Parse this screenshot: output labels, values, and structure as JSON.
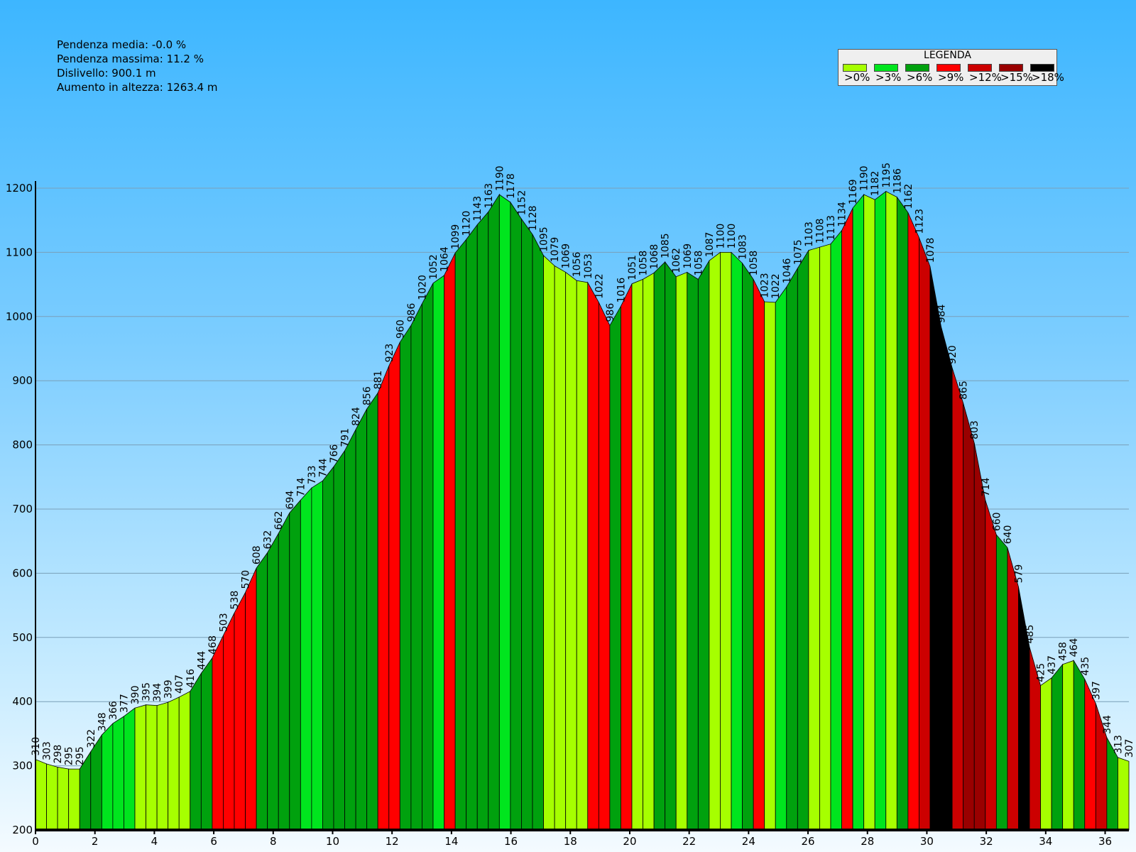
{
  "stats": [
    "Pendenza media: -0.0 %",
    "Pendenza massima: 11.2 %",
    "Dislivello: 900.1 m",
    "Aumento in altezza: 1263.4 m"
  ],
  "legend": {
    "title": "LEGENDA",
    "items": [
      {
        "label": ">0%",
        "color": "#a6ff00"
      },
      {
        "label": ">3%",
        "color": "#00e51e"
      },
      {
        "label": ">6%",
        "color": "#00a10e"
      },
      {
        "label": ">9%",
        "color": "#ff0000"
      },
      {
        "label": ">12%",
        "color": "#cc0000"
      },
      {
        "label": ">15%",
        "color": "#990000"
      },
      {
        "label": ">18%",
        "color": "#000000"
      }
    ]
  },
  "chart_data": {
    "type": "area",
    "xlim": [
      0,
      36.8
    ],
    "ylim": [
      200,
      1200
    ],
    "x_ticks": [
      0,
      2,
      4,
      6,
      8,
      10,
      12,
      14,
      16,
      18,
      20,
      22,
      24,
      26,
      28,
      30,
      32,
      34,
      36
    ],
    "y_ticks": [
      200,
      300,
      400,
      500,
      600,
      700,
      800,
      900,
      1000,
      1100,
      1200
    ],
    "grid": true,
    "point_labels": [
      "310",
      "303",
      "298",
      "295",
      "295",
      "322",
      "348",
      "366",
      "377",
      "390",
      "395",
      "394",
      "399",
      "407",
      "416",
      "444",
      "468",
      "503",
      "538",
      "570",
      "608",
      "632",
      "662",
      "694",
      "714",
      "733",
      "744",
      "766",
      "791",
      "824",
      "856",
      "881",
      "923",
      "960",
      "986",
      "1020",
      "1052",
      "1064",
      "1099",
      "1120",
      "1143",
      "1163",
      "1190",
      "1178",
      "1152",
      "1128",
      "1095",
      "1079",
      "1069",
      "1056",
      "1053",
      "1022",
      "986",
      "1016",
      "1051",
      "1058",
      "1068",
      "1085",
      "1062",
      "1069",
      "1058",
      "1087",
      "1100",
      "1100",
      "1083",
      "1058",
      "1023",
      "1022",
      "1046",
      "1075",
      "1103",
      "1108",
      "1113",
      "1134",
      "1169",
      "1190",
      "1182",
      "1195",
      "1186",
      "1162",
      "1123",
      "1078",
      "984",
      "920",
      "865",
      "803",
      "714",
      "660",
      "640",
      "579",
      "485",
      "425",
      "437",
      "458",
      "464",
      "435",
      "397",
      "344",
      "313",
      "307"
    ],
    "elevations": [
      310,
      303,
      298,
      295,
      295,
      322,
      348,
      366,
      377,
      390,
      395,
      394,
      399,
      407,
      416,
      444,
      468,
      503,
      538,
      570,
      608,
      632,
      662,
      694,
      714,
      733,
      744,
      766,
      791,
      824,
      856,
      881,
      923,
      960,
      986,
      1020,
      1052,
      1064,
      1099,
      1120,
      1143,
      1163,
      1190,
      1178,
      1152,
      1128,
      1095,
      1079,
      1069,
      1056,
      1053,
      1022,
      986,
      1016,
      1051,
      1058,
      1068,
      1085,
      1062,
      1069,
      1058,
      1087,
      1100,
      1100,
      1083,
      1058,
      1023,
      1022,
      1046,
      1075,
      1103,
      1108,
      1113,
      1134,
      1169,
      1190,
      1182,
      1195,
      1186,
      1162,
      1123,
      1078,
      984,
      920,
      865,
      803,
      714,
      660,
      640,
      579,
      485,
      425,
      437,
      458,
      464,
      435,
      397,
      344,
      313,
      307
    ],
    "segment_colors": [
      "#a6ff00",
      "#a6ff00",
      "#a6ff00",
      "#a6ff00",
      "#00a10e",
      "#00a10e",
      "#00e51e",
      "#00e51e",
      "#00e51e",
      "#a6ff00",
      "#a6ff00",
      "#a6ff00",
      "#a6ff00",
      "#a6ff00",
      "#00a10e",
      "#00a10e",
      "#ff0000",
      "#ff0000",
      "#ff0000",
      "#ff0000",
      "#00a10e",
      "#00a10e",
      "#00a10e",
      "#00a10e",
      "#00e51e",
      "#00e51e",
      "#00a10e",
      "#00a10e",
      "#00a10e",
      "#00a10e",
      "#00a10e",
      "#ff0000",
      "#ff0000",
      "#00a10e",
      "#00a10e",
      "#00a10e",
      "#00e51e",
      "#ff0000",
      "#00a10e",
      "#00a10e",
      "#00a10e",
      "#00a10e",
      "#00e51e",
      "#00a10e",
      "#00a10e",
      "#00a10e",
      "#a6ff00",
      "#a6ff00",
      "#a6ff00",
      "#a6ff00",
      "#ff0000",
      "#ff0000",
      "#00a10e",
      "#ff0000",
      "#a6ff00",
      "#a6ff00",
      "#00a10e",
      "#00a10e",
      "#a6ff00",
      "#00a10e",
      "#00a10e",
      "#a6ff00",
      "#a6ff00",
      "#00e51e",
      "#00a10e",
      "#ff0000",
      "#a6ff00",
      "#00e51e",
      "#00a10e",
      "#00a10e",
      "#a6ff00",
      "#a6ff00",
      "#00e51e",
      "#ff0000",
      "#00e51e",
      "#a6ff00",
      "#00e51e",
      "#a6ff00",
      "#00a10e",
      "#ff0000",
      "#cc0000",
      "#000000",
      "#000000",
      "#cc0000",
      "#990000",
      "#990000",
      "#cc0000",
      "#00a10e",
      "#cc0000",
      "#000000",
      "#cc0000",
      "#a6ff00",
      "#00a10e",
      "#a6ff00",
      "#00a10e",
      "#ff0000",
      "#cc0000",
      "#00a10e",
      "#a6ff00"
    ]
  }
}
